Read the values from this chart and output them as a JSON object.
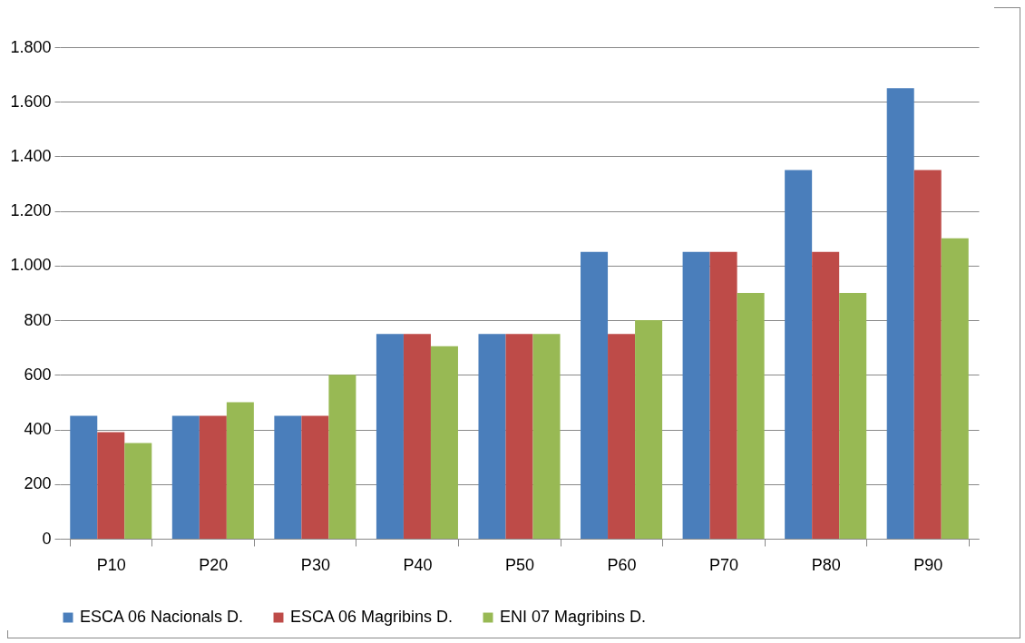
{
  "chart_data": {
    "type": "bar",
    "categories": [
      "P10",
      "P20",
      "P30",
      "P40",
      "P50",
      "P60",
      "P70",
      "P80",
      "P90"
    ],
    "series": [
      {
        "name": "ESCA 06 Nacionals D.",
        "color": "#4a7ebb",
        "values": [
          450,
          450,
          450,
          750,
          750,
          1050,
          1050,
          1350,
          1650
        ]
      },
      {
        "name": "ESCA 06 Magribins D.",
        "color": "#be4b48",
        "values": [
          390,
          450,
          450,
          750,
          750,
          750,
          1050,
          1050,
          1350
        ]
      },
      {
        "name": "ENI 07 Magribins D.",
        "color": "#98b954",
        "values": [
          350,
          500,
          600,
          705,
          750,
          800,
          900,
          900,
          1100
        ]
      }
    ],
    "ylim": [
      0,
      1800
    ],
    "yticks": [
      0,
      200,
      400,
      600,
      800,
      {
        "value": 1000,
        "label": "1.000"
      },
      {
        "value": 1200,
        "label": "1.200"
      },
      {
        "value": 1400,
        "label": "1.400"
      },
      {
        "value": 1600,
        "label": "1.600"
      },
      {
        "value": 1800,
        "label": "1.800"
      }
    ],
    "grid": "y",
    "legend": "bottom"
  }
}
